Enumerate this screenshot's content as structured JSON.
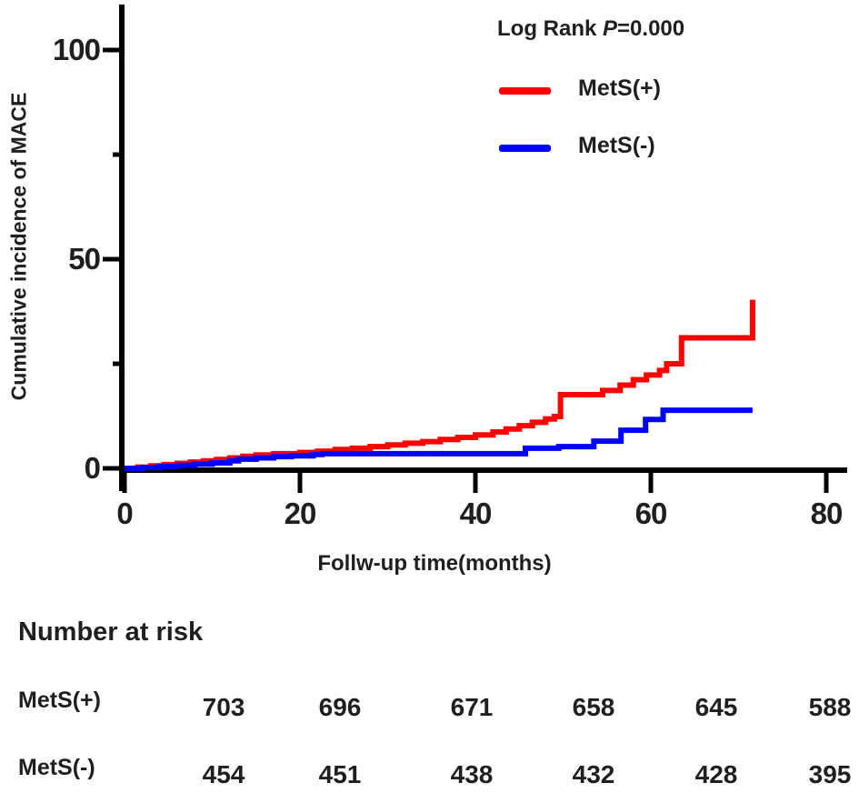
{
  "chart_data": {
    "type": "line",
    "subtype": "step",
    "title": "",
    "xlabel": "Follw-up time(months)",
    "ylabel": "Cumulative incidence of MACE",
    "xlim": [
      0,
      80
    ],
    "ylim": [
      0,
      100
    ],
    "x_ticks": [
      0,
      20,
      40,
      60,
      80
    ],
    "y_ticks": [
      0,
      50,
      100
    ],
    "y_minor_ticks": [
      25,
      75
    ],
    "grid": false,
    "legend_position": "top-right",
    "annotation": "Log Rank P=0.000",
    "series": [
      {
        "name": "MetS(+)",
        "color": "#ff0000",
        "points": [
          [
            0,
            0
          ],
          [
            1.5,
            0.3
          ],
          [
            3,
            0.6
          ],
          [
            4.5,
            0.9
          ],
          [
            6,
            1.2
          ],
          [
            7.5,
            1.5
          ],
          [
            9,
            1.8
          ],
          [
            10.5,
            2.1
          ],
          [
            12,
            2.5
          ],
          [
            13.5,
            2.9
          ],
          [
            15,
            3.2
          ],
          [
            17,
            3.5
          ],
          [
            20,
            3.8
          ],
          [
            22,
            4.1
          ],
          [
            24,
            4.5
          ],
          [
            26,
            4.8
          ],
          [
            28,
            5.2
          ],
          [
            30,
            5.6
          ],
          [
            32,
            6.0
          ],
          [
            34,
            6.4
          ],
          [
            36,
            6.9
          ],
          [
            38,
            7.4
          ],
          [
            40,
            8.0
          ],
          [
            42,
            8.7
          ],
          [
            43.5,
            9.4
          ],
          [
            45,
            10.2
          ],
          [
            46.5,
            11.0
          ],
          [
            48,
            11.8
          ],
          [
            49,
            12.4
          ],
          [
            49.7,
            17.6
          ],
          [
            54.5,
            18.6
          ],
          [
            56.5,
            19.9
          ],
          [
            58,
            21.2
          ],
          [
            59.5,
            22.3
          ],
          [
            61,
            23.4
          ],
          [
            61.8,
            25.0
          ],
          [
            63.5,
            31.2
          ],
          [
            71.6,
            40.3
          ]
        ],
        "end_time": null
      },
      {
        "name": "MetS(-)",
        "color": "#0000ff",
        "points": [
          [
            0,
            0
          ],
          [
            2,
            0.2
          ],
          [
            4,
            0.45
          ],
          [
            6,
            0.7
          ],
          [
            8,
            1.0
          ],
          [
            10,
            1.3
          ],
          [
            12,
            1.8
          ],
          [
            13,
            2.2
          ],
          [
            15,
            2.5
          ],
          [
            17,
            2.8
          ],
          [
            19,
            3.0
          ],
          [
            21.5,
            3.3
          ],
          [
            22.5,
            3.5
          ],
          [
            45.7,
            4.8
          ],
          [
            49.5,
            5.2
          ],
          [
            53.5,
            6.5
          ],
          [
            56.6,
            9.1
          ],
          [
            59.4,
            11.7
          ],
          [
            61.4,
            13.9
          ]
        ],
        "end_time": 71.6
      }
    ]
  },
  "legend": {
    "log_rank_prefix": "Log Rank ",
    "p_symbol": "P",
    "p_value": "=0.000",
    "items": [
      {
        "label": "MetS(+)",
        "color": "#ff0000"
      },
      {
        "label": "MetS(-)",
        "color": "#0000ff"
      }
    ]
  },
  "risk_table": {
    "heading": "Number at risk",
    "rows": [
      {
        "label": "MetS(+)",
        "values": [
          "703",
          "696",
          "671",
          "658",
          "645",
          "588"
        ]
      },
      {
        "label": "MetS(-)",
        "values": [
          "454",
          "451",
          "438",
          "432",
          "428",
          "395"
        ]
      }
    ]
  },
  "colors": {
    "mets_plus": "#ff0000",
    "mets_minus": "#0000ff",
    "axis": "#000000",
    "text": "#1f1f1f"
  }
}
